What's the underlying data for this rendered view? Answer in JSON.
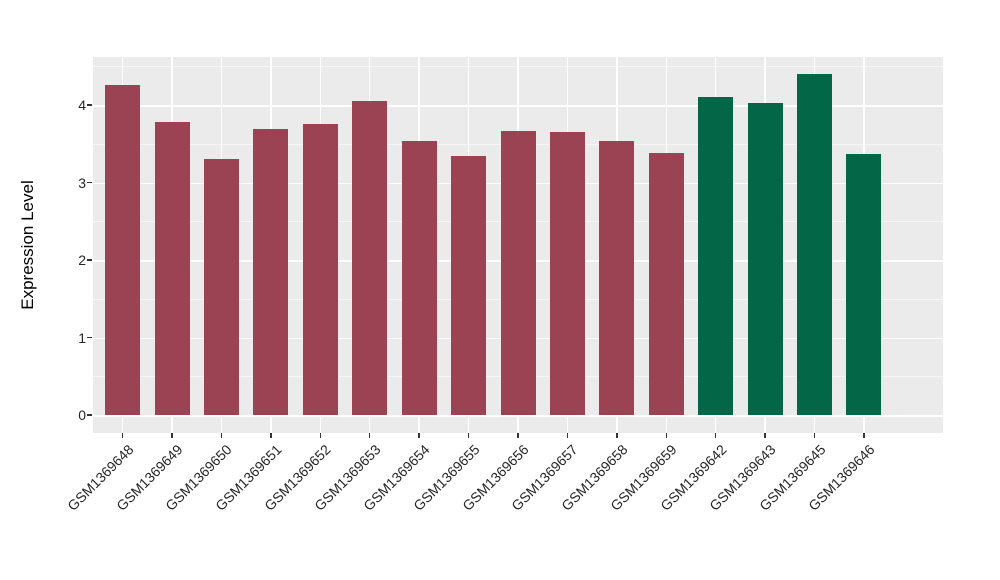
{
  "chart_data": {
    "type": "bar",
    "title": "",
    "xlabel": "",
    "ylabel": "Expression Level",
    "categories": [
      "GSM1369648",
      "GSM1369649",
      "GSM1369650",
      "GSM1369651",
      "GSM1369652",
      "GSM1369653",
      "GSM1369654",
      "GSM1369655",
      "GSM1369656",
      "GSM1369657",
      "GSM1369658",
      "GSM1369659",
      "GSM1369642",
      "GSM1369643",
      "GSM1369645",
      "GSM1369646"
    ],
    "values": [
      4.26,
      3.78,
      3.3,
      3.69,
      3.75,
      4.05,
      3.53,
      3.34,
      3.67,
      3.65,
      3.54,
      3.38,
      4.1,
      4.02,
      4.4,
      3.37
    ],
    "bar_colors": [
      "#9C4353",
      "#9C4353",
      "#9C4353",
      "#9C4353",
      "#9C4353",
      "#9C4353",
      "#9C4353",
      "#9C4353",
      "#9C4353",
      "#9C4353",
      "#9C4353",
      "#9C4353",
      "#036647",
      "#036647",
      "#036647",
      "#036647"
    ],
    "group_colors": {
      "group1": "#9C4353",
      "group2": "#036647"
    },
    "yticks": [
      0,
      1,
      2,
      3,
      4
    ],
    "minor_yticks": [
      0.5,
      1.5,
      2.5,
      3.5,
      4.5
    ],
    "ylim": [
      0,
      4.62
    ],
    "x_label_rotation": 45,
    "grid": "on",
    "legend": "none",
    "panel_bg": "#EBEBEB",
    "grid_color": "#FFFFFF"
  }
}
